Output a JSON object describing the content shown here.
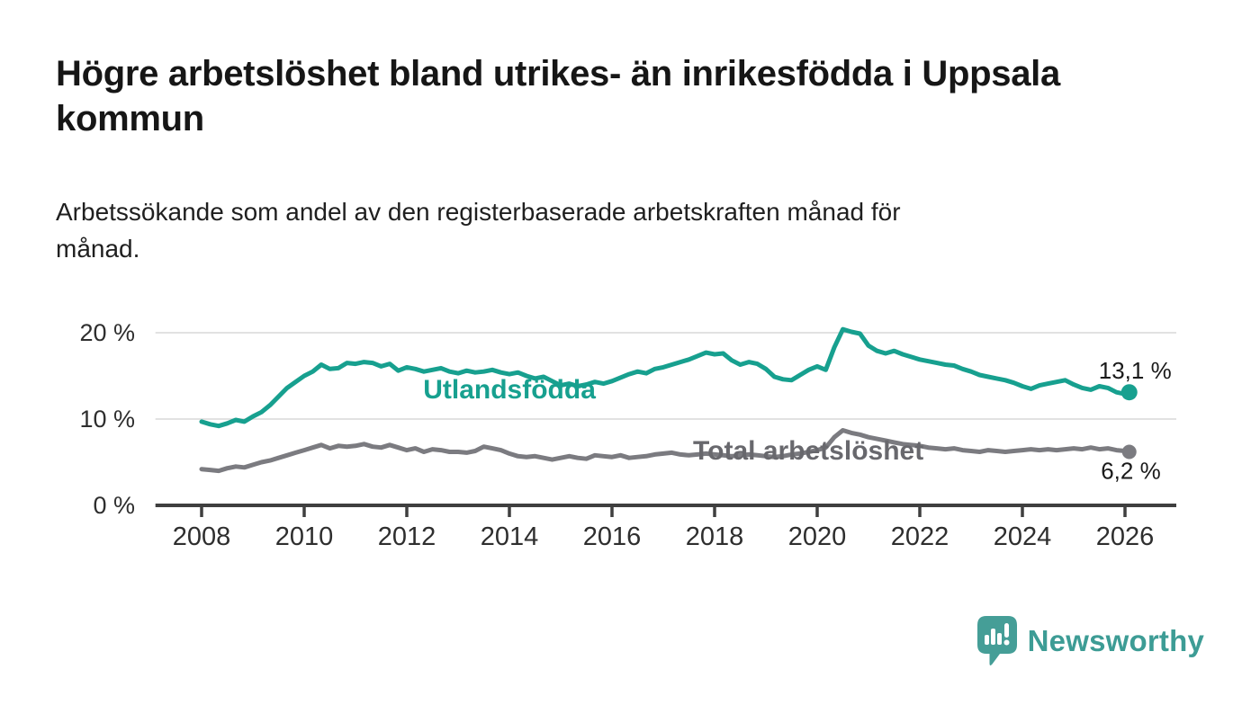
{
  "header": {
    "title": "Högre arbetslöshet bland utrikes- än inrikesfödda i Uppsala kommun",
    "subtitle": "Arbetssökande som andel av den registerbaserade arbetskraften månad för månad."
  },
  "chart_data": {
    "type": "line",
    "title": "",
    "xlabel": "",
    "ylabel": "",
    "x": {
      "unit": "year",
      "start": 2008.0,
      "step_years": 0.166667,
      "end": 2026.083,
      "tick_years": [
        2008,
        2010,
        2012,
        2014,
        2016,
        2018,
        2020,
        2022,
        2024,
        2026
      ],
      "axis_range": [
        2007.1,
        2027.0
      ]
    },
    "y": {
      "ticks": [
        0,
        10,
        20
      ],
      "tick_suffix": " %",
      "range": [
        0,
        24
      ],
      "grid": true,
      "grid_color": "#d9d9d9",
      "axis_color": "#3f3f3f"
    },
    "legend_position": "inline-labels",
    "series": [
      {
        "name": "Utlandsfödda",
        "color": "#17a08f",
        "label_color": "#17a08f",
        "line_width": 5,
        "end_dot_radius": 9,
        "end_label": "13,1 %",
        "final_value": 13.1,
        "label_pos": {
          "x": 2012.32,
          "y": 12.4
        },
        "end_label_offset": [
          47,
          -15
        ],
        "values": [
          9.7,
          9.4,
          9.2,
          9.5,
          9.9,
          9.7,
          10.3,
          10.8,
          11.6,
          12.6,
          13.6,
          14.3,
          15.0,
          15.5,
          16.3,
          15.8,
          15.9,
          16.5,
          16.4,
          16.6,
          16.5,
          16.1,
          16.4,
          15.6,
          16.0,
          15.8,
          15.5,
          15.7,
          15.9,
          15.5,
          15.3,
          15.6,
          15.4,
          15.5,
          15.7,
          15.4,
          15.2,
          15.4,
          15.0,
          14.7,
          14.9,
          14.4,
          13.9,
          14.1,
          13.8,
          14.0,
          14.3,
          14.1,
          14.4,
          14.8,
          15.2,
          15.5,
          15.3,
          15.8,
          16.0,
          16.3,
          16.6,
          16.9,
          17.3,
          17.7,
          17.5,
          17.6,
          16.8,
          16.3,
          16.6,
          16.4,
          15.8,
          14.9,
          14.6,
          14.5,
          15.1,
          15.7,
          16.1,
          15.7,
          18.3,
          20.4,
          20.1,
          19.9,
          18.5,
          17.9,
          17.6,
          17.9,
          17.5,
          17.2,
          16.9,
          16.7,
          16.5,
          16.3,
          16.2,
          15.8,
          15.5,
          15.1,
          14.9,
          14.7,
          14.5,
          14.2,
          13.8,
          13.5,
          13.9,
          14.1,
          14.3,
          14.5,
          14.0,
          13.6,
          13.4,
          13.8,
          13.6,
          13.1,
          12.9,
          13.1
        ]
      },
      {
        "name": "Total arbetslöshet",
        "color": "#7b7b80",
        "label_color": "#68686d",
        "line_width": 5,
        "end_dot_radius": 8,
        "end_label": "6,2 %",
        "final_value": 6.2,
        "label_pos": {
          "x": 2017.58,
          "y": 5.3
        },
        "end_label_offset": [
          35,
          30
        ],
        "values": [
          4.2,
          4.1,
          4.0,
          4.3,
          4.5,
          4.4,
          4.7,
          5.0,
          5.2,
          5.5,
          5.8,
          6.1,
          6.4,
          6.7,
          7.0,
          6.6,
          6.9,
          6.8,
          6.9,
          7.1,
          6.8,
          6.7,
          7.0,
          6.7,
          6.4,
          6.6,
          6.2,
          6.5,
          6.4,
          6.2,
          6.2,
          6.1,
          6.3,
          6.8,
          6.6,
          6.4,
          6.0,
          5.7,
          5.6,
          5.7,
          5.5,
          5.3,
          5.5,
          5.7,
          5.5,
          5.4,
          5.8,
          5.7,
          5.6,
          5.8,
          5.5,
          5.6,
          5.7,
          5.9,
          6.0,
          6.1,
          5.9,
          5.8,
          5.9,
          6.0,
          5.9,
          5.8,
          5.7,
          5.8,
          5.9,
          5.8,
          5.7,
          5.6,
          5.7,
          5.9,
          6.0,
          6.2,
          6.4,
          6.7,
          7.9,
          8.7,
          8.4,
          8.2,
          7.9,
          7.7,
          7.5,
          7.3,
          7.1,
          7.0,
          6.9,
          6.7,
          6.6,
          6.5,
          6.6,
          6.4,
          6.3,
          6.2,
          6.4,
          6.3,
          6.2,
          6.3,
          6.4,
          6.5,
          6.4,
          6.5,
          6.4,
          6.5,
          6.6,
          6.5,
          6.7,
          6.5,
          6.6,
          6.4,
          6.3,
          6.2
        ]
      }
    ]
  },
  "branding": {
    "name": "Newsworthy",
    "color": "#3d9c95",
    "logo_icon": "speech-bubble-bar-chart"
  }
}
